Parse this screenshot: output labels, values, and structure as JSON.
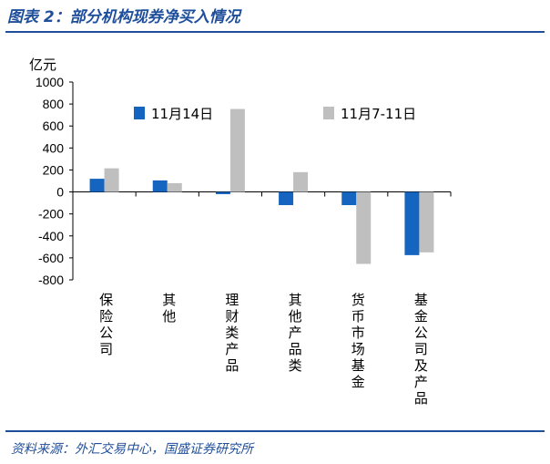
{
  "title": "图表 2：部分机构现券净买入情况",
  "source": "资料来源：外汇交易中心，国盛证券研究所",
  "chart_data": {
    "type": "bar",
    "ylabel": "亿元",
    "ylim": [
      -800,
      1000
    ],
    "yticks": [
      1000,
      800,
      600,
      400,
      200,
      0,
      -200,
      -400,
      -600,
      -800
    ],
    "categories": [
      "保险公司",
      "其他",
      "理财类产品",
      "其他产品类",
      "货币市场基金",
      "基金公司及产品"
    ],
    "series": [
      {
        "name": "11月14日",
        "color": "#1565c0",
        "values": [
          120,
          105,
          -20,
          -120,
          -120,
          -575
        ]
      },
      {
        "name": "11月7-11日",
        "color": "#bfbfbf",
        "values": [
          215,
          80,
          755,
          180,
          -655,
          -550
        ]
      }
    ],
    "legend_position": "top"
  }
}
